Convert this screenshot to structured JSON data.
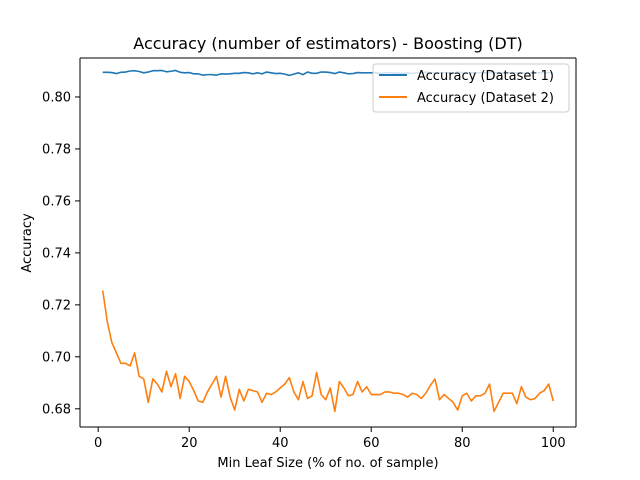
{
  "chart_data": {
    "type": "line",
    "title": "Accuracy (number of estimators) - Boosting (DT)",
    "xlabel": "Min Leaf Size (% of no. of sample)",
    "ylabel": "Accuracy",
    "xlim": [
      -4,
      105
    ],
    "ylim": [
      0.673,
      0.815
    ],
    "xticks": [
      0,
      20,
      40,
      60,
      80,
      100
    ],
    "yticks": [
      0.68,
      0.7,
      0.72,
      0.74,
      0.76,
      0.78,
      0.8
    ],
    "ytick_labels": [
      "0.68",
      "0.70",
      "0.72",
      "0.74",
      "0.76",
      "0.78",
      "0.80"
    ],
    "xtick_labels": [
      "0",
      "20",
      "40",
      "60",
      "80",
      "100"
    ],
    "grid": false,
    "legend_position": "top-right",
    "x": [
      1,
      2,
      3,
      4,
      5,
      6,
      7,
      8,
      9,
      10,
      11,
      12,
      13,
      14,
      15,
      16,
      17,
      18,
      19,
      20,
      21,
      22,
      23,
      24,
      25,
      26,
      27,
      28,
      29,
      30,
      31,
      32,
      33,
      34,
      35,
      36,
      37,
      38,
      39,
      40,
      41,
      42,
      43,
      44,
      45,
      46,
      47,
      48,
      49,
      50,
      51,
      52,
      53,
      54,
      55,
      56,
      57,
      58,
      59,
      60,
      61,
      62,
      63,
      64,
      65,
      66,
      67,
      68,
      69,
      70,
      71,
      72,
      73,
      74,
      75,
      76,
      77,
      78,
      79,
      80,
      81,
      82,
      83,
      84,
      85,
      86,
      87,
      88,
      89,
      90,
      91,
      92,
      93,
      94,
      95,
      96,
      97,
      98,
      99,
      100
    ],
    "series": [
      {
        "name": "Accuracy (Dataset 1)",
        "color": "#1f77b4",
        "values": [
          0.8095,
          0.8095,
          0.8094,
          0.809,
          0.8095,
          0.8096,
          0.81,
          0.8101,
          0.8098,
          0.8093,
          0.8096,
          0.8101,
          0.8101,
          0.8102,
          0.8097,
          0.8099,
          0.8102,
          0.8095,
          0.8093,
          0.8094,
          0.8089,
          0.8089,
          0.8084,
          0.8086,
          0.8086,
          0.8084,
          0.8089,
          0.8088,
          0.8089,
          0.8091,
          0.8091,
          0.8094,
          0.8093,
          0.8089,
          0.8093,
          0.8089,
          0.8096,
          0.8093,
          0.809,
          0.8091,
          0.8088,
          0.8083,
          0.8088,
          0.8093,
          0.8086,
          0.8096,
          0.8091,
          0.8091,
          0.8096,
          0.8096,
          0.8094,
          0.809,
          0.8096,
          0.8093,
          0.8089,
          0.809,
          0.8094,
          0.8093,
          0.8093,
          0.8093,
          0.8094,
          0.809,
          0.8093,
          0.8094,
          0.8092,
          0.8092,
          0.8091,
          0.8093,
          0.809,
          0.8093,
          0.8093,
          0.8095,
          0.8093,
          0.8093,
          0.8092,
          0.8094,
          0.8093,
          0.8093,
          0.8095,
          0.8093,
          0.8094,
          0.8093,
          0.8093,
          0.8094,
          0.8093,
          0.8094,
          0.8093,
          0.8094,
          0.8093,
          0.8094,
          0.8093,
          0.8094,
          0.8093,
          0.8094,
          0.8093,
          0.8094,
          0.8093,
          0.8094,
          0.8093,
          0.8094
        ]
      },
      {
        "name": "Accuracy (Dataset 2)",
        "color": "#ff7f0e",
        "values": [
          0.7255,
          0.7135,
          0.7055,
          0.7015,
          0.6975,
          0.6975,
          0.6965,
          0.7015,
          0.6925,
          0.6915,
          0.6825,
          0.6915,
          0.6895,
          0.6865,
          0.6945,
          0.6885,
          0.6935,
          0.684,
          0.6925,
          0.6905,
          0.687,
          0.683,
          0.6825,
          0.6865,
          0.6895,
          0.6925,
          0.6845,
          0.6925,
          0.6845,
          0.6795,
          0.6875,
          0.683,
          0.6875,
          0.687,
          0.6865,
          0.6825,
          0.686,
          0.6855,
          0.6865,
          0.688,
          0.6895,
          0.692,
          0.6865,
          0.6835,
          0.6905,
          0.684,
          0.685,
          0.694,
          0.6855,
          0.6835,
          0.688,
          0.679,
          0.6905,
          0.688,
          0.685,
          0.6855,
          0.6905,
          0.6865,
          0.6885,
          0.6855,
          0.6855,
          0.6855,
          0.6865,
          0.6865,
          0.686,
          0.686,
          0.6855,
          0.6845,
          0.686,
          0.6855,
          0.684,
          0.686,
          0.689,
          0.6915,
          0.6835,
          0.6855,
          0.684,
          0.6825,
          0.6795,
          0.685,
          0.686,
          0.683,
          0.685,
          0.685,
          0.686,
          0.6895,
          0.679,
          0.6825,
          0.686,
          0.686,
          0.686,
          0.682,
          0.6885,
          0.6845,
          0.6835,
          0.684,
          0.686,
          0.687,
          0.6895,
          0.683
        ]
      }
    ]
  }
}
